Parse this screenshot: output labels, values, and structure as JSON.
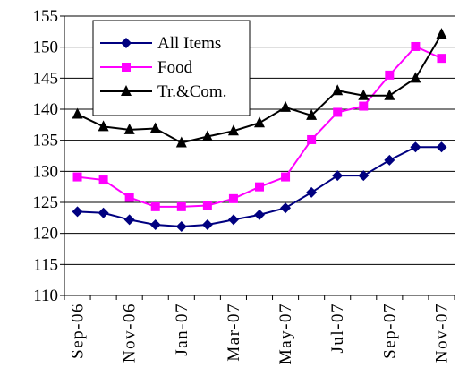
{
  "chart_data": {
    "type": "line",
    "title": "",
    "xlabel": "",
    "ylabel": "",
    "ylim": [
      110,
      155
    ],
    "yticks": [
      110,
      115,
      120,
      125,
      130,
      135,
      140,
      145,
      150,
      155
    ],
    "grid": "horizontal",
    "legend_position": "top-left",
    "x": [
      "Sep-06",
      "Oct-06",
      "Nov-06",
      "Dec-06",
      "Jan-07",
      "Feb-07",
      "Mar-07",
      "Apr-07",
      "May-07",
      "Jun-07",
      "Jul-07",
      "Aug-07",
      "Sep-07",
      "Oct-07",
      "Nov-07"
    ],
    "tick_labels": [
      "Sep-06",
      "Nov-06",
      "Jan-07",
      "Mar-07",
      "May-07",
      "Jul-07",
      "Sep-07",
      "Nov-07"
    ],
    "series": [
      {
        "name": "All Items",
        "color": "#000080",
        "marker": "diamond",
        "values": [
          123.5,
          123.3,
          122.2,
          121.4,
          121.1,
          121.4,
          122.2,
          123.0,
          124.1,
          126.6,
          129.3,
          129.3,
          131.8,
          133.9,
          133.9
        ]
      },
      {
        "name": "Food",
        "color": "#FF00FF",
        "marker": "square",
        "values": [
          129.1,
          128.6,
          125.8,
          124.3,
          124.3,
          124.5,
          125.6,
          127.5,
          129.1,
          135.1,
          139.5,
          140.5,
          145.5,
          150.1,
          148.2
        ]
      },
      {
        "name": "Tr.&Com.",
        "color": "#000000",
        "marker": "triangle",
        "values": [
          139.2,
          137.2,
          136.7,
          136.9,
          134.6,
          135.6,
          136.5,
          137.8,
          140.3,
          139.0,
          143.0,
          142.2,
          142.2,
          145.0,
          152.1
        ]
      }
    ]
  }
}
